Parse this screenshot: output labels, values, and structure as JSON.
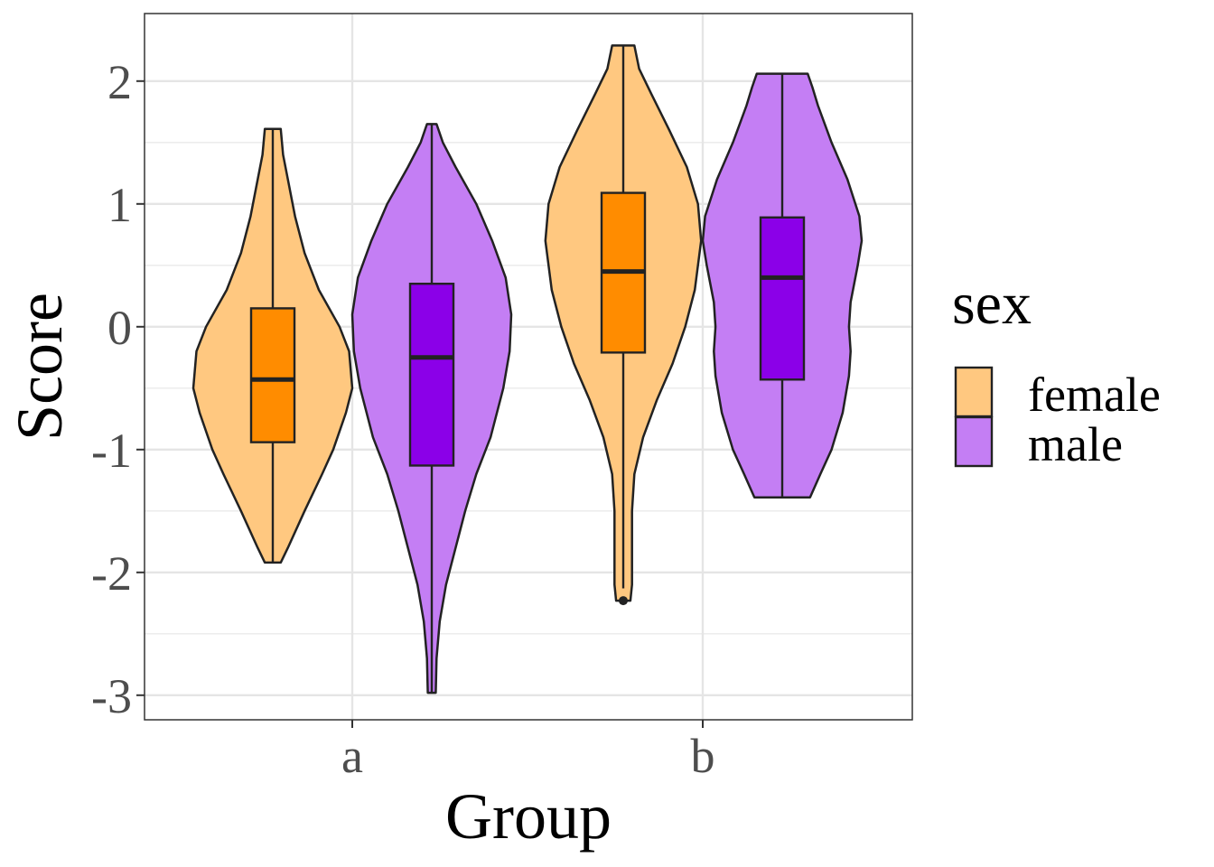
{
  "chart_data": {
    "type": "violin",
    "xlabel": "Group",
    "ylabel": "Score",
    "categories": [
      "a",
      "b"
    ],
    "ylim": [
      -3.2,
      2.55
    ],
    "yticks": [
      -3,
      -2,
      -1,
      0,
      1,
      2
    ],
    "ytick_labels": [
      "-3",
      "-2",
      "-1",
      "0",
      "1",
      "2"
    ],
    "grid": true,
    "legend": {
      "title": "sex",
      "placement": "right",
      "entries": [
        "female",
        "male"
      ]
    },
    "colors": {
      "female_box": "#FF8C00",
      "female_violin": "#FFC880",
      "male_box": "#8B00E8",
      "male_violin": "#C47EF4",
      "outline": "#222222",
      "grid": "#e5e5e5",
      "panel_border": "#333333"
    },
    "series": [
      {
        "name": "female",
        "groups": [
          {
            "category": "a",
            "min": -1.92,
            "q1": -0.94,
            "median": -0.43,
            "q3": 0.15,
            "max": 1.61,
            "outliers": [],
            "density": [
              [
                -1.92,
                0.1
              ],
              [
                -1.8,
                0.19
              ],
              [
                -1.5,
                0.4
              ],
              [
                -1.2,
                0.62
              ],
              [
                -1.0,
                0.76
              ],
              [
                -0.7,
                0.92
              ],
              [
                -0.5,
                1.0
              ],
              [
                -0.2,
                0.96
              ],
              [
                0.0,
                0.84
              ],
              [
                0.3,
                0.58
              ],
              [
                0.6,
                0.4
              ],
              [
                0.9,
                0.28
              ],
              [
                1.2,
                0.19
              ],
              [
                1.4,
                0.13
              ],
              [
                1.61,
                0.1
              ]
            ]
          },
          {
            "category": "b",
            "min": -2.13,
            "q1": -0.21,
            "median": 0.45,
            "q3": 1.09,
            "max": 2.29,
            "outliers": [
              -2.23
            ],
            "density": [
              [
                -2.23,
                0.09
              ],
              [
                -2.1,
                0.11
              ],
              [
                -1.8,
                0.11
              ],
              [
                -1.5,
                0.11
              ],
              [
                -1.2,
                0.14
              ],
              [
                -0.9,
                0.25
              ],
              [
                -0.6,
                0.42
              ],
              [
                -0.3,
                0.62
              ],
              [
                0.0,
                0.78
              ],
              [
                0.3,
                0.9
              ],
              [
                0.7,
                0.98
              ],
              [
                1.0,
                0.94
              ],
              [
                1.3,
                0.8
              ],
              [
                1.6,
                0.58
              ],
              [
                1.9,
                0.35
              ],
              [
                2.1,
                0.2
              ],
              [
                2.29,
                0.14
              ]
            ]
          }
        ]
      },
      {
        "name": "male",
        "groups": [
          {
            "category": "a",
            "min": -2.98,
            "q1": -1.13,
            "median": -0.25,
            "q3": 0.35,
            "max": 1.65,
            "outliers": [],
            "density": [
              [
                -2.98,
                0.05
              ],
              [
                -2.7,
                0.06
              ],
              [
                -2.4,
                0.1
              ],
              [
                -2.1,
                0.18
              ],
              [
                -1.8,
                0.3
              ],
              [
                -1.5,
                0.42
              ],
              [
                -1.2,
                0.56
              ],
              [
                -0.9,
                0.74
              ],
              [
                -0.5,
                0.9
              ],
              [
                -0.2,
                0.98
              ],
              [
                0.1,
                1.0
              ],
              [
                0.4,
                0.93
              ],
              [
                0.7,
                0.76
              ],
              [
                1.0,
                0.56
              ],
              [
                1.3,
                0.3
              ],
              [
                1.5,
                0.14
              ],
              [
                1.65,
                0.06
              ]
            ]
          },
          {
            "category": "b",
            "min": -1.39,
            "q1": -0.43,
            "median": 0.4,
            "q3": 0.89,
            "max": 2.06,
            "outliers": [],
            "density": [
              [
                -1.39,
                0.35
              ],
              [
                -1.2,
                0.48
              ],
              [
                -1.0,
                0.62
              ],
              [
                -0.7,
                0.76
              ],
              [
                -0.4,
                0.84
              ],
              [
                -0.2,
                0.86
              ],
              [
                0.0,
                0.84
              ],
              [
                0.2,
                0.86
              ],
              [
                0.5,
                0.95
              ],
              [
                0.7,
                1.0
              ],
              [
                0.9,
                0.97
              ],
              [
                1.2,
                0.82
              ],
              [
                1.5,
                0.62
              ],
              [
                1.8,
                0.45
              ],
              [
                1.95,
                0.38
              ],
              [
                2.06,
                0.32
              ]
            ]
          }
        ]
      }
    ]
  }
}
